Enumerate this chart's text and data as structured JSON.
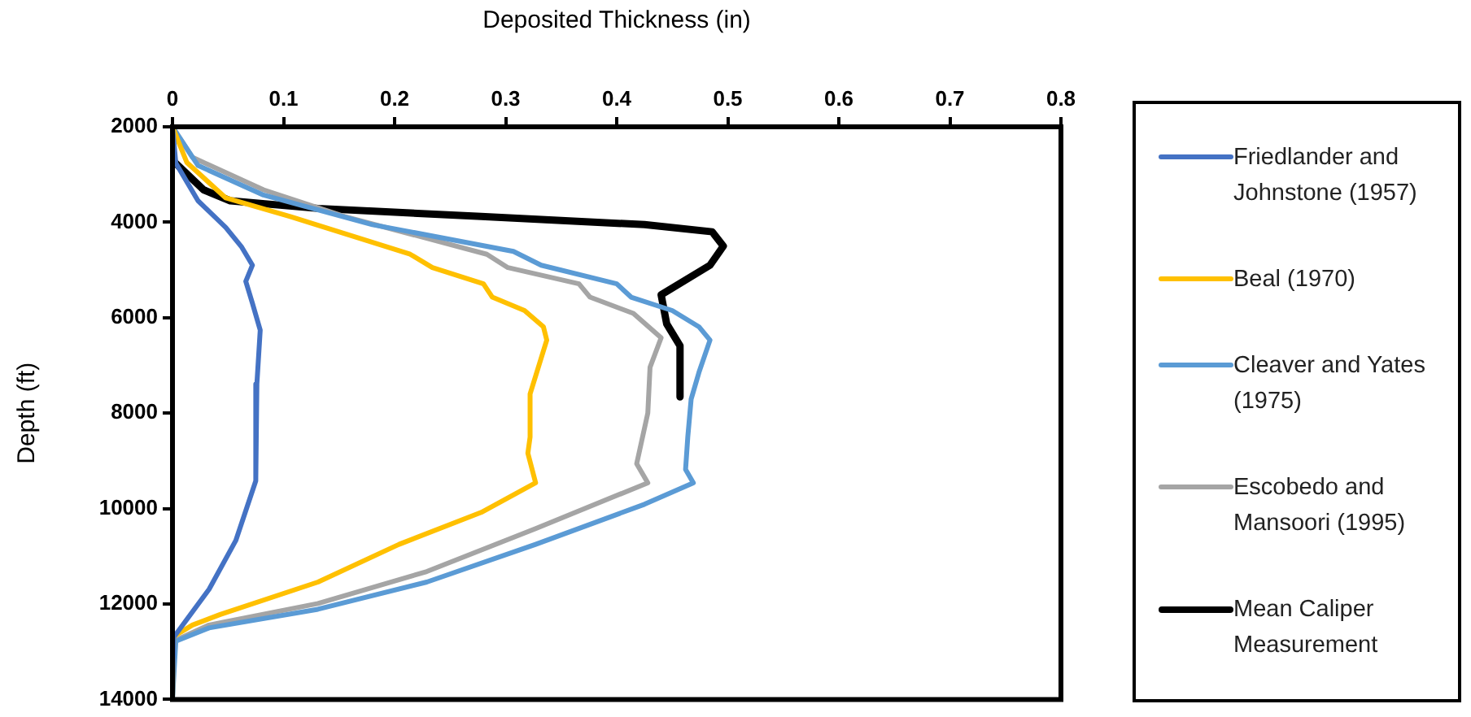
{
  "chart_data": {
    "type": "line",
    "xlabel": "Deposited Thickness (in)",
    "ylabel": "Depth (ft)",
    "xlim": [
      0,
      0.8
    ],
    "xticks": [
      0,
      0.1,
      0.2,
      0.3,
      0.4,
      0.5,
      0.6,
      0.7,
      0.8
    ],
    "ylim": [
      14000,
      2000
    ],
    "yticks": [
      2000,
      4000,
      6000,
      8000,
      10000,
      12000,
      14000
    ],
    "grid": false,
    "legend": "right",
    "marker": "none",
    "line_style": "solid",
    "series": [
      {
        "name": "Friedlander and Johnstone (1957)",
        "color": "#4472c4",
        "x": [
          0,
          0.003,
          0.023,
          0.048,
          0.062,
          0.072,
          0.066,
          0.072,
          0.079,
          0.076,
          0.075,
          0.057,
          0.033,
          0.001,
          0
        ],
        "values": [
          2000,
          2760,
          3550,
          4110,
          4510,
          4900,
          5240,
          5700,
          6260,
          7390,
          9420,
          10670,
          11690,
          12700,
          14000
        ]
      },
      {
        "name": "Beal (1970)",
        "color": "#ffc000",
        "x": [
          0,
          0.013,
          0.048,
          0.106,
          0.214,
          0.234,
          0.28,
          0.288,
          0.317,
          0.334,
          0.337,
          0.322,
          0.322,
          0.32,
          0.327,
          0.278,
          0.204,
          0.131,
          0.043,
          0.018,
          0.001,
          0
        ],
        "values": [
          2000,
          2750,
          3490,
          3880,
          4670,
          4950,
          5290,
          5570,
          5850,
          6190,
          6470,
          7600,
          8500,
          8840,
          9460,
          10080,
          10750,
          11540,
          12220,
          12440,
          12680,
          14000
        ]
      },
      {
        "name": "Cleaver and Yates (1975)",
        "color": "#5b9bd5",
        "x": [
          0,
          0.023,
          0.082,
          0.18,
          0.307,
          0.332,
          0.4,
          0.413,
          0.45,
          0.474,
          0.484,
          0.474,
          0.467,
          0.464,
          0.462,
          0.469,
          0.425,
          0.327,
          0.229,
          0.131,
          0.033,
          0.003,
          0
        ],
        "values": [
          2000,
          2810,
          3430,
          4050,
          4610,
          4900,
          5290,
          5570,
          5850,
          6190,
          6470,
          7150,
          7710,
          8500,
          9180,
          9460,
          9910,
          10750,
          11540,
          12110,
          12500,
          12780,
          14000
        ]
      },
      {
        "name": "Escobedo and Mansoori (1995)",
        "color": "#a5a5a5",
        "x": [
          0,
          0.018,
          0.082,
          0.155,
          0.283,
          0.302,
          0.366,
          0.376,
          0.415,
          0.44,
          0.43,
          0.428,
          0.418,
          0.428,
          0.327,
          0.229,
          0.131,
          0.033,
          0.001,
          0
        ],
        "values": [
          2000,
          2640,
          3320,
          3880,
          4670,
          4950,
          5290,
          5570,
          5910,
          6420,
          7040,
          8000,
          9060,
          9460,
          10420,
          11320,
          11990,
          12440,
          12780,
          14000
        ]
      },
      {
        "name": "Mean Caliper Measurement",
        "color": "#000000",
        "x": [
          0,
          0.028,
          0.052,
          0.131,
          0.278,
          0.425,
          0.486,
          0.496,
          0.484,
          0.44,
          0.445,
          0.457,
          0.457
        ],
        "values": [
          2700,
          3320,
          3550,
          3710,
          3880,
          4050,
          4200,
          4500,
          4900,
          5520,
          6130,
          6590,
          7660
        ]
      }
    ]
  }
}
